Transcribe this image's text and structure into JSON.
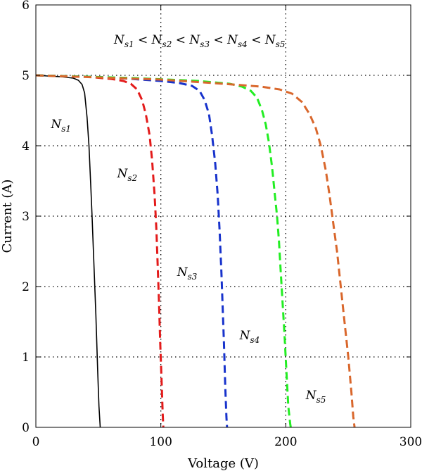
{
  "chart_data": {
    "type": "line",
    "xlabel": "Voltage (V)",
    "ylabel": "Current (A)",
    "xlim": [
      0,
      300
    ],
    "ylim": [
      0,
      6
    ],
    "xticks": [
      "0",
      "100",
      "200",
      "300"
    ],
    "yticks": [
      "0",
      "1",
      "2",
      "3",
      "4",
      "5",
      "6"
    ],
    "grid": "dotted",
    "annotation": {
      "base": "N",
      "subs": [
        "s1",
        "s2",
        "s3",
        "s4",
        "s5"
      ],
      "separator": "<"
    },
    "series": [
      {
        "label_base": "N",
        "label_sub": "s1",
        "color": "#000000",
        "dashed": false,
        "x": [
          0,
          10,
          20,
          30,
          34,
          37,
          39,
          41,
          42.5,
          44,
          45,
          46.5,
          48,
          49.5,
          50.5,
          51.5
        ],
        "y": [
          5.0,
          4.99,
          4.98,
          4.96,
          4.93,
          4.87,
          4.75,
          4.4,
          4.0,
          3.4,
          3.0,
          2.3,
          1.6,
          0.8,
          0.3,
          0
        ]
      },
      {
        "label_base": "N",
        "label_sub": "s2",
        "color": "#e31b1b",
        "dashed": true,
        "x": [
          0,
          40,
          60,
          70,
          76,
          81,
          85,
          88,
          91,
          93,
          95,
          96.5,
          97.5,
          98.5,
          99.5,
          100.5,
          101.5,
          102
        ],
        "y": [
          5.0,
          4.98,
          4.95,
          4.92,
          4.88,
          4.8,
          4.65,
          4.45,
          4.15,
          3.8,
          3.3,
          2.8,
          2.3,
          1.8,
          1.2,
          0.7,
          0.2,
          0
        ]
      },
      {
        "label_base": "N",
        "label_sub": "s3",
        "color": "#1833cc",
        "dashed": true,
        "x": [
          0,
          60,
          100,
          115,
          125,
          131,
          135,
          138.5,
          141,
          143.5,
          145.5,
          147,
          148.5,
          149.5,
          150.5,
          151.5,
          152.5,
          153
        ],
        "y": [
          5.0,
          4.97,
          4.92,
          4.89,
          4.85,
          4.78,
          4.65,
          4.45,
          4.15,
          3.75,
          3.3,
          2.8,
          2.2,
          1.7,
          1.2,
          0.6,
          0.15,
          0
        ]
      },
      {
        "label_base": "N",
        "label_sub": "s4",
        "color": "#22ee22",
        "dashed": true,
        "x": [
          0,
          80,
          130,
          155,
          165,
          172,
          177,
          181,
          184,
          186.5,
          189,
          191,
          193,
          194.5,
          196,
          197.5,
          199,
          200.5,
          202,
          203.5,
          204
        ],
        "y": [
          5.0,
          4.96,
          4.92,
          4.88,
          4.84,
          4.78,
          4.68,
          4.5,
          4.3,
          4.05,
          3.7,
          3.35,
          3.0,
          2.65,
          2.2,
          1.75,
          1.3,
          0.8,
          0.3,
          0.05,
          0
        ]
      },
      {
        "label_base": "N",
        "label_sub": "s5",
        "color": "#d9672c",
        "dashed": true,
        "x": [
          0,
          50,
          100,
          150,
          180,
          195,
          205,
          213,
          219,
          224,
          228,
          232,
          235,
          238,
          241,
          244,
          247,
          250,
          252.5,
          254,
          255
        ],
        "y": [
          5.0,
          4.97,
          4.94,
          4.88,
          4.84,
          4.8,
          4.74,
          4.62,
          4.45,
          4.25,
          4.0,
          3.65,
          3.3,
          2.9,
          2.5,
          2.0,
          1.5,
          1.0,
          0.5,
          0.15,
          0
        ]
      }
    ]
  }
}
